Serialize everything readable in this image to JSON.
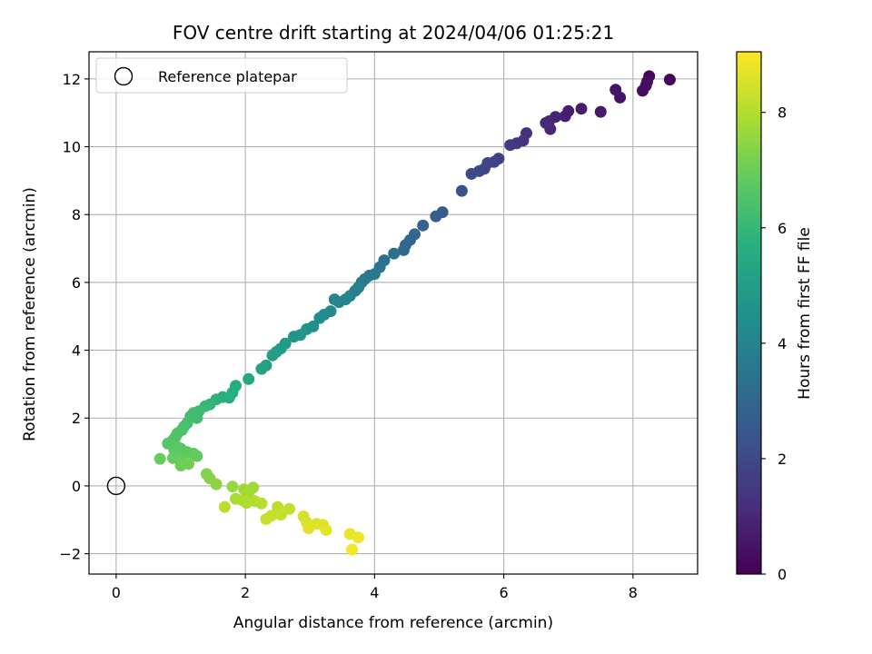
{
  "chart_data": {
    "type": "scatter",
    "title": "FOV centre drift starting at 2024/04/06 01:25:21",
    "xlabel": "Angular distance from reference (arcmin)",
    "ylabel": "Rotation from reference (arcmin)",
    "colorbar_label": "Hours from first FF file",
    "xlim": [
      -0.42,
      9.0
    ],
    "ylim": [
      -2.6,
      12.8
    ],
    "x_ticks": [
      0,
      2,
      4,
      6,
      8
    ],
    "y_ticks": [
      -2,
      0,
      2,
      4,
      6,
      8,
      10,
      12
    ],
    "colorbar_range": [
      0,
      9.05
    ],
    "colorbar_ticks": [
      0,
      2,
      4,
      6,
      8
    ],
    "colormap": "viridis",
    "grid": true,
    "legend": {
      "entries": [
        "Reference platepar"
      ],
      "placement": "top-left"
    },
    "reference_point": {
      "x": 0,
      "y": 0,
      "name": "Reference platepar"
    },
    "points": [
      [
        8.57,
        11.98,
        0.12
      ],
      [
        8.25,
        12.08,
        0.18
      ],
      [
        8.22,
        11.92,
        0.25
      ],
      [
        8.15,
        11.65,
        0.3
      ],
      [
        8.2,
        11.8,
        0.35
      ],
      [
        7.8,
        11.45,
        0.45
      ],
      [
        7.73,
        11.68,
        0.5
      ],
      [
        7.5,
        11.03,
        0.62
      ],
      [
        7.2,
        11.12,
        0.7
      ],
      [
        7.0,
        11.05,
        0.75
      ],
      [
        6.95,
        10.9,
        0.8
      ],
      [
        6.8,
        10.88,
        0.9
      ],
      [
        6.7,
        10.75,
        0.95
      ],
      [
        6.72,
        10.52,
        1.0
      ],
      [
        6.65,
        10.7,
        1.05
      ],
      [
        6.35,
        10.4,
        1.25
      ],
      [
        6.3,
        10.18,
        1.35
      ],
      [
        6.2,
        10.1,
        1.45
      ],
      [
        6.1,
        10.05,
        1.55
      ],
      [
        5.92,
        9.65,
        1.75
      ],
      [
        5.85,
        9.55,
        1.8
      ],
      [
        5.75,
        9.52,
        1.85
      ],
      [
        5.7,
        9.35,
        1.9
      ],
      [
        5.62,
        9.28,
        1.95
      ],
      [
        5.5,
        9.2,
        2.05
      ],
      [
        5.35,
        8.7,
        2.3
      ],
      [
        5.05,
        8.07,
        2.6
      ],
      [
        4.95,
        7.95,
        2.7
      ],
      [
        4.75,
        7.68,
        2.85
      ],
      [
        4.62,
        7.42,
        2.95
      ],
      [
        4.55,
        7.25,
        3.0
      ],
      [
        4.48,
        7.1,
        3.05
      ],
      [
        4.45,
        6.95,
        3.1
      ],
      [
        4.3,
        6.85,
        3.25
      ],
      [
        4.15,
        6.65,
        3.4
      ],
      [
        4.08,
        6.45,
        3.5
      ],
      [
        4.0,
        6.25,
        3.6
      ],
      [
        3.92,
        6.2,
        3.65
      ],
      [
        3.85,
        6.1,
        3.7
      ],
      [
        3.8,
        6.0,
        3.75
      ],
      [
        3.75,
        5.85,
        3.85
      ],
      [
        3.7,
        5.75,
        3.9
      ],
      [
        3.62,
        5.6,
        4.0
      ],
      [
        3.55,
        5.5,
        4.05
      ],
      [
        3.45,
        5.42,
        4.1
      ],
      [
        3.38,
        5.5,
        4.15
      ],
      [
        3.32,
        5.15,
        4.25
      ],
      [
        3.22,
        5.05,
        4.3
      ],
      [
        3.15,
        4.95,
        4.35
      ],
      [
        3.05,
        4.7,
        4.5
      ],
      [
        2.95,
        4.62,
        4.55
      ],
      [
        2.85,
        4.45,
        4.65
      ],
      [
        2.75,
        4.4,
        4.7
      ],
      [
        2.62,
        4.2,
        4.85
      ],
      [
        2.55,
        4.05,
        4.9
      ],
      [
        2.48,
        3.95,
        4.95
      ],
      [
        2.42,
        3.85,
        5.0
      ],
      [
        2.32,
        3.55,
        5.1
      ],
      [
        2.25,
        3.45,
        5.15
      ],
      [
        2.05,
        3.15,
        5.35
      ],
      [
        1.85,
        2.95,
        5.55
      ],
      [
        1.8,
        2.75,
        5.6
      ],
      [
        1.75,
        2.6,
        5.65
      ],
      [
        1.65,
        2.62,
        5.7
      ],
      [
        1.55,
        2.55,
        5.8
      ],
      [
        1.45,
        2.4,
        5.9
      ],
      [
        1.38,
        2.35,
        6.0
      ],
      [
        1.28,
        2.2,
        6.1
      ],
      [
        1.2,
        2.15,
        6.15
      ],
      [
        1.25,
        2.0,
        6.2
      ],
      [
        1.15,
        2.05,
        6.25
      ],
      [
        1.1,
        1.85,
        6.3
      ],
      [
        1.05,
        1.75,
        6.35
      ],
      [
        1.02,
        1.65,
        6.4
      ],
      [
        0.95,
        1.55,
        6.45
      ],
      [
        0.92,
        1.45,
        6.5
      ],
      [
        0.88,
        1.35,
        6.55
      ],
      [
        0.8,
        1.25,
        6.6
      ],
      [
        0.95,
        1.15,
        6.65
      ],
      [
        0.9,
        1.05,
        6.7
      ],
      [
        1.0,
        1.1,
        6.72
      ],
      [
        1.1,
        1.0,
        6.75
      ],
      [
        1.2,
        0.95,
        6.78
      ],
      [
        1.05,
        0.95,
        6.8
      ],
      [
        0.98,
        0.85,
        6.82
      ],
      [
        1.25,
        0.88,
        6.85
      ],
      [
        0.88,
        0.82,
        6.88
      ],
      [
        0.68,
        0.8,
        6.9
      ],
      [
        1.05,
        0.7,
        6.95
      ],
      [
        1.0,
        0.6,
        7.0
      ],
      [
        1.12,
        0.65,
        7.05
      ],
      [
        1.4,
        0.35,
        7.3
      ],
      [
        1.45,
        0.22,
        7.35
      ],
      [
        1.55,
        0.05,
        7.45
      ],
      [
        1.8,
        -0.02,
        7.6
      ],
      [
        1.98,
        -0.1,
        7.7
      ],
      [
        2.12,
        -0.05,
        7.75
      ],
      [
        2.05,
        -0.2,
        7.8
      ],
      [
        1.85,
        -0.38,
        7.85
      ],
      [
        1.95,
        -0.42,
        7.9
      ],
      [
        2.02,
        -0.5,
        7.95
      ],
      [
        2.15,
        -0.45,
        8.0
      ],
      [
        2.25,
        -0.52,
        8.05
      ],
      [
        1.68,
        -0.62,
        8.1
      ],
      [
        2.5,
        -0.62,
        8.15
      ],
      [
        2.68,
        -0.68,
        8.2
      ],
      [
        2.55,
        -0.85,
        8.25
      ],
      [
        2.4,
        -0.88,
        8.3
      ],
      [
        2.32,
        -0.98,
        8.35
      ],
      [
        2.9,
        -0.9,
        8.45
      ],
      [
        2.95,
        -1.08,
        8.5
      ],
      [
        3.1,
        -1.12,
        8.55
      ],
      [
        3.2,
        -1.15,
        8.6
      ],
      [
        2.98,
        -1.25,
        8.65
      ],
      [
        3.25,
        -1.3,
        8.7
      ],
      [
        3.62,
        -1.42,
        8.8
      ],
      [
        3.75,
        -1.52,
        8.85
      ],
      [
        3.65,
        -1.88,
        8.95
      ]
    ]
  }
}
